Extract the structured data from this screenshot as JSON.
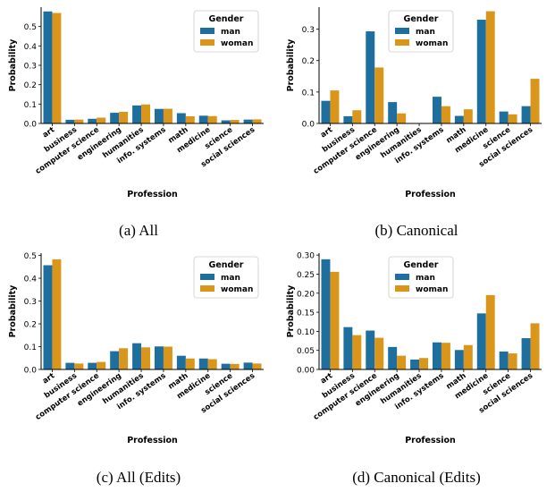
{
  "colors": {
    "man": "#1f6f9e",
    "woman": "#d9961a"
  },
  "chart_data": [
    {
      "type": "bar",
      "caption": "(a) All",
      "xlabel": "Profession",
      "ylabel": "Probability",
      "ylim": [
        0,
        0.6
      ],
      "yticks": [
        "0.0",
        "0.1",
        "0.2",
        "0.3",
        "0.4",
        "0.5"
      ],
      "legend_title": "Gender",
      "legend_position": "top-right",
      "categories": [
        "art",
        "business",
        "computer science",
        "engineering",
        "humanities",
        "info. systems",
        "math",
        "medicine",
        "science",
        "social sciences"
      ],
      "series": [
        {
          "name": "man",
          "values": [
            0.578,
            0.019,
            0.024,
            0.055,
            0.093,
            0.075,
            0.053,
            0.04,
            0.016,
            0.02
          ]
        },
        {
          "name": "woman",
          "values": [
            0.57,
            0.02,
            0.03,
            0.06,
            0.098,
            0.076,
            0.037,
            0.038,
            0.018,
            0.021
          ]
        }
      ]
    },
    {
      "type": "bar",
      "caption": "(b) Canonical",
      "xlabel": "Profession",
      "ylabel": "Probability",
      "ylim": [
        0,
        0.37
      ],
      "yticks": [
        "0.0",
        "0.1",
        "0.2",
        "0.3"
      ],
      "legend_title": "Gender",
      "legend_position": "top-left",
      "categories": [
        "art",
        "business",
        "computer science",
        "engineering",
        "humanities",
        "info. systems",
        "math",
        "medicine",
        "science",
        "social sciences"
      ],
      "series": [
        {
          "name": "man",
          "values": [
            0.072,
            0.023,
            0.293,
            0.068,
            0.0,
            0.085,
            0.024,
            0.33,
            0.038,
            0.055
          ]
        },
        {
          "name": "woman",
          "values": [
            0.105,
            0.042,
            0.178,
            0.032,
            0.0,
            0.055,
            0.045,
            0.357,
            0.029,
            0.142
          ]
        }
      ]
    },
    {
      "type": "bar",
      "caption": "(c) All (Edits)",
      "xlabel": "Profession",
      "ylabel": "Probability",
      "ylim": [
        0,
        0.51
      ],
      "yticks": [
        "0.0",
        "0.1",
        "0.2",
        "0.3",
        "0.4",
        "0.5"
      ],
      "legend_title": "Gender",
      "legend_position": "top-right",
      "categories": [
        "art",
        "business",
        "computer science",
        "engineering",
        "humanities",
        "info. systems",
        "math",
        "medicine",
        "science",
        "social sciences"
      ],
      "series": [
        {
          "name": "man",
          "values": [
            0.457,
            0.029,
            0.029,
            0.08,
            0.115,
            0.101,
            0.06,
            0.048,
            0.025,
            0.03
          ]
        },
        {
          "name": "woman",
          "values": [
            0.483,
            0.026,
            0.033,
            0.093,
            0.097,
            0.1,
            0.048,
            0.045,
            0.024,
            0.026
          ]
        }
      ]
    },
    {
      "type": "bar",
      "caption": "(d) Canonical (Edits)",
      "xlabel": "Profession",
      "ylabel": "Probability",
      "ylim": [
        0,
        0.305
      ],
      "yticks": [
        "0.00",
        "0.05",
        "0.10",
        "0.15",
        "0.20",
        "0.25",
        "0.30"
      ],
      "legend_title": "Gender",
      "legend_position": "top-left",
      "categories": [
        "art",
        "business",
        "computer science",
        "engineering",
        "humanities",
        "info. systems",
        "math",
        "medicine",
        "science",
        "social sciences"
      ],
      "series": [
        {
          "name": "man",
          "values": [
            0.289,
            0.111,
            0.102,
            0.059,
            0.026,
            0.071,
            0.051,
            0.147,
            0.047,
            0.082
          ]
        },
        {
          "name": "woman",
          "values": [
            0.256,
            0.09,
            0.083,
            0.036,
            0.03,
            0.07,
            0.064,
            0.195,
            0.042,
            0.121
          ]
        }
      ]
    }
  ]
}
